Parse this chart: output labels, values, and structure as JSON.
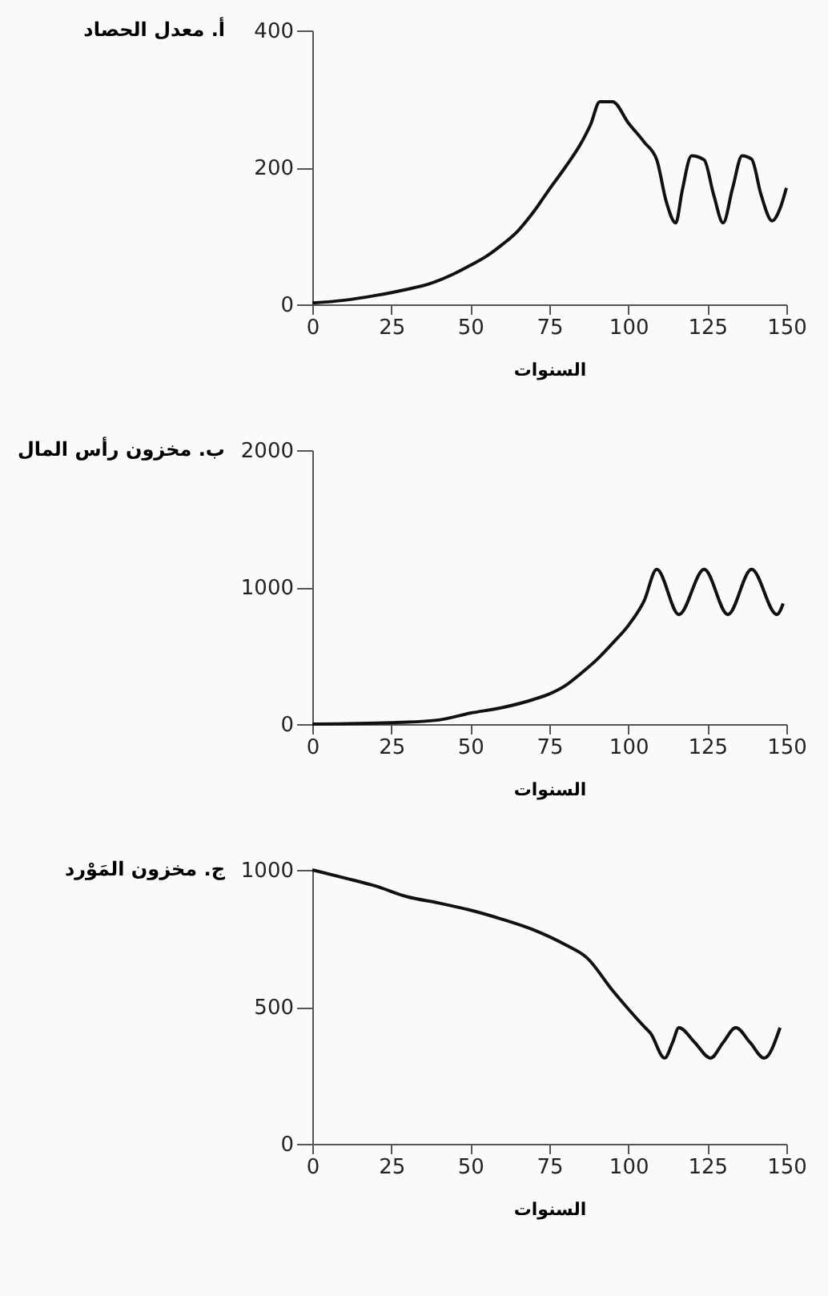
{
  "chart_data": [
    {
      "type": "line",
      "ylabel": "أ. معدل الحصاد",
      "xlabel": "السنوات",
      "color": "#111111",
      "xlim": [
        0,
        150
      ],
      "xticks": [
        0,
        25,
        50,
        75,
        100,
        125,
        150
      ],
      "ylim": [
        0,
        400
      ],
      "yticks": [
        0,
        200,
        400
      ],
      "x": [
        0,
        10,
        20,
        30,
        37,
        45,
        50,
        55,
        60,
        65,
        70,
        75,
        80,
        85,
        88,
        91,
        95,
        100,
        105,
        109,
        112,
        115,
        117,
        120,
        124,
        127,
        130,
        133,
        136,
        139,
        142,
        145.5,
        148,
        150
      ],
      "values": [
        2,
        6,
        13,
        22,
        30,
        45,
        57,
        70,
        87,
        107,
        135,
        168,
        200,
        235,
        262,
        296,
        296,
        265,
        237,
        211,
        150,
        119,
        165,
        217,
        211,
        160,
        119,
        170,
        217,
        212,
        160,
        122,
        140,
        170
      ]
    },
    {
      "type": "line",
      "ylabel": "ب. مخزون رأس المال",
      "xlabel": "السنوات",
      "color": "#111111",
      "xlim": [
        0,
        150
      ],
      "xticks": [
        0,
        25,
        50,
        75,
        100,
        125,
        150
      ],
      "ylim": [
        0,
        2000
      ],
      "yticks": [
        0,
        1000,
        2000
      ],
      "x": [
        0,
        25,
        40,
        50,
        60,
        70,
        75,
        80,
        85,
        90,
        95,
        100,
        105,
        109,
        116,
        124,
        131.5,
        139,
        147,
        149
      ],
      "values": [
        0,
        10,
        30,
        80,
        120,
        180,
        220,
        280,
        370,
        470,
        590,
        720,
        900,
        1130,
        800,
        1130,
        800,
        1130,
        800,
        880
      ]
    },
    {
      "type": "line",
      "ylabel": "ج. مخزون المَوْرد",
      "xlabel": "السنوات",
      "color": "#111111",
      "xlim": [
        0,
        150
      ],
      "xticks": [
        0,
        25,
        50,
        75,
        100,
        125,
        150
      ],
      "ylim": [
        0,
        1000
      ],
      "yticks": [
        0,
        500,
        1000
      ],
      "x": [
        0,
        10,
        20,
        30,
        40,
        50,
        60,
        70,
        80,
        87,
        95,
        100,
        105,
        107,
        111.5,
        114,
        116,
        121,
        126,
        130,
        134,
        138.5,
        143,
        148
      ],
      "values": [
        1000,
        971,
        941,
        902,
        879,
        853,
        820,
        781,
        727,
        678,
        560,
        492,
        428,
        404,
        313,
        370,
        424,
        370,
        313,
        370,
        424,
        370,
        313,
        424
      ]
    }
  ]
}
